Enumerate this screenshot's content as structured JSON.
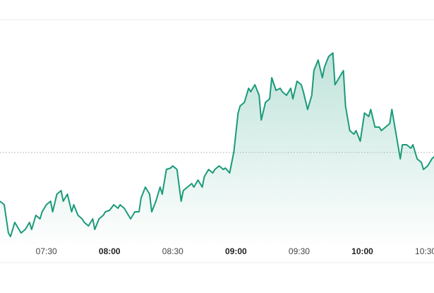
{
  "chart_data": {
    "type": "line",
    "x": [
      428,
      430,
      432,
      433,
      435,
      437,
      438,
      440,
      442,
      443,
      445,
      447,
      448,
      450,
      452,
      453,
      455,
      457,
      458,
      460,
      462,
      463,
      465,
      467,
      468,
      470,
      472,
      473,
      475,
      477,
      478,
      480,
      482,
      484,
      485,
      487,
      489,
      490,
      492,
      494,
      495,
      497,
      499,
      500,
      502,
      504,
      505,
      507,
      509,
      510,
      512,
      514,
      515,
      517,
      519,
      520,
      522,
      524,
      525,
      527,
      529,
      530,
      532,
      534,
      535,
      537,
      539,
      541,
      542,
      544,
      546,
      547,
      549,
      551,
      552,
      554,
      556,
      557,
      559,
      561,
      562,
      564,
      566,
      567,
      569,
      571,
      572,
      574,
      576,
      577,
      579,
      581,
      582,
      584,
      586,
      587,
      589,
      591,
      592,
      594,
      596,
      597,
      599,
      601,
      603,
      604,
      606,
      608,
      609,
      611,
      613,
      614,
      616,
      618,
      619,
      621,
      623,
      624,
      626,
      628,
      629,
      631,
      633,
      634
    ],
    "series": [
      {
        "color": "#1a9a7a",
        "values": [
          85,
          80,
          40,
          35,
          55,
          45,
          40,
          45,
          55,
          45,
          65,
          60,
          70,
          80,
          85,
          70,
          95,
          100,
          85,
          95,
          70,
          80,
          65,
          60,
          55,
          50,
          60,
          45,
          60,
          65,
          70,
          72,
          80,
          75,
          80,
          75,
          65,
          60,
          70,
          70,
          90,
          105,
          95,
          70,
          85,
          105,
          95,
          130,
          132,
          135,
          130,
          85,
          100,
          105,
          110,
          105,
          115,
          105,
          120,
          130,
          125,
          130,
          135,
          130,
          132,
          125,
          155,
          210,
          220,
          225,
          245,
          240,
          250,
          235,
          200,
          225,
          230,
          260,
          242,
          245,
          240,
          235,
          245,
          230,
          255,
          250,
          240,
          215,
          235,
          270,
          285,
          260,
          275,
          290,
          295,
          250,
          260,
          270,
          220,
          185,
          180,
          185,
          170,
          210,
          205,
          215,
          190,
          190,
          185,
          190,
          195,
          215,
          180,
          145,
          165,
          165,
          160,
          165,
          145,
          140,
          130,
          135,
          145,
          148
        ]
      }
    ],
    "reference": 154,
    "xlim": [
      428,
      634
    ],
    "ylim": [
      0,
      370
    ],
    "xticks": [
      {
        "value": 450,
        "label": "07:30"
      },
      {
        "value": 480,
        "label": "08:00"
      },
      {
        "value": 510,
        "label": "08:30"
      },
      {
        "value": 540,
        "label": "09:00"
      },
      {
        "value": 570,
        "label": "09:30"
      },
      {
        "value": 600,
        "label": "10:00"
      },
      {
        "value": 630,
        "label": "10:30"
      }
    ]
  }
}
